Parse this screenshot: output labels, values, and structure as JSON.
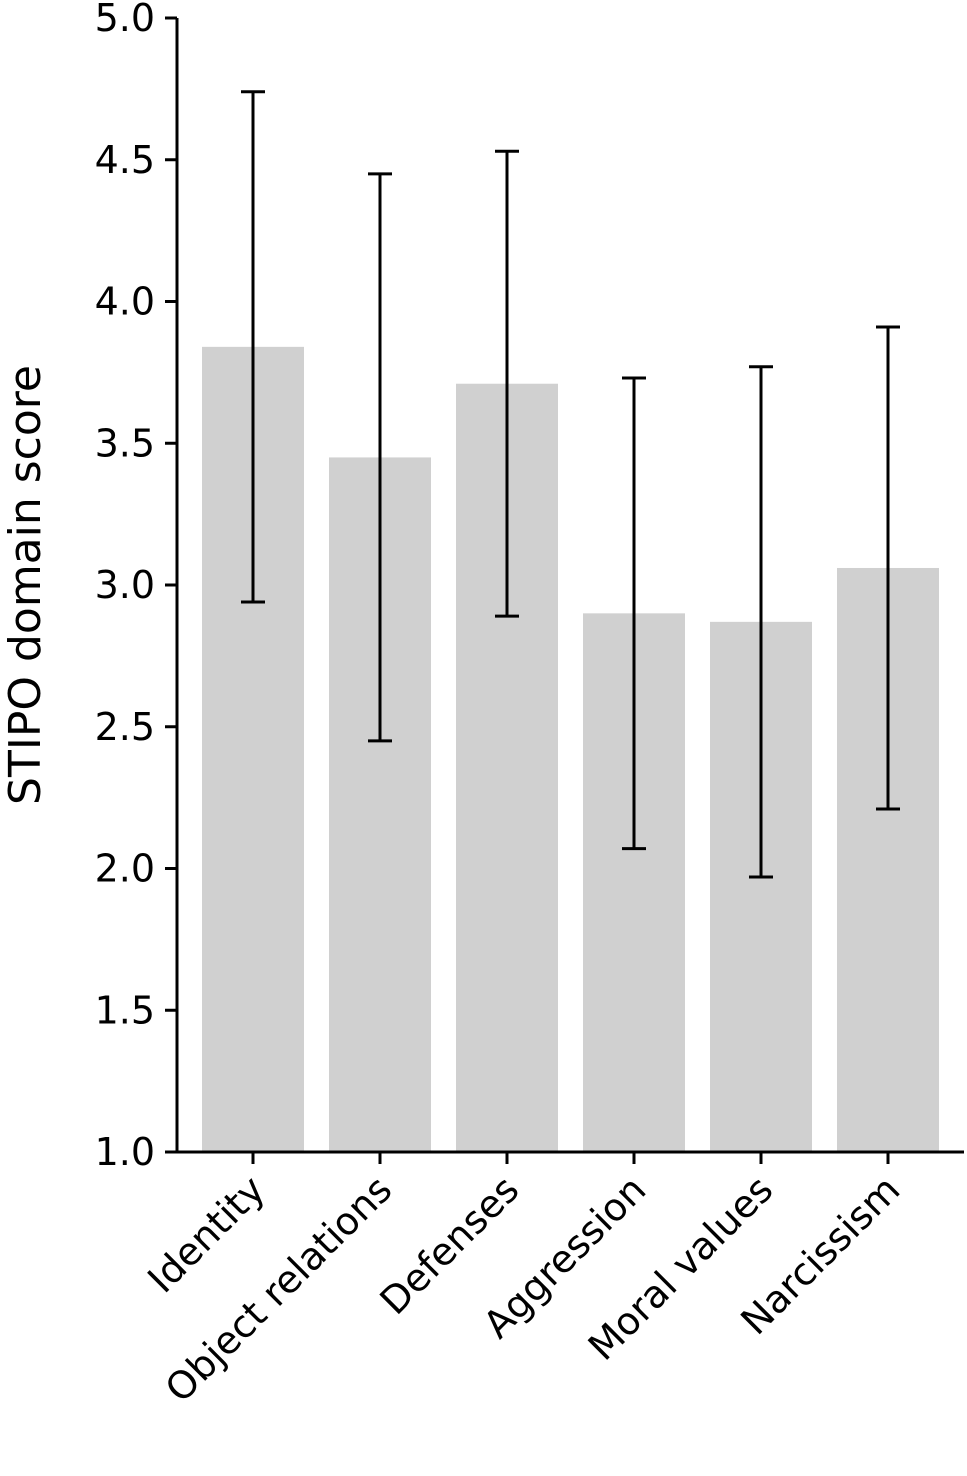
{
  "chart_data": {
    "type": "bar",
    "title": "",
    "xlabel": "",
    "ylabel": "STIPO domain score",
    "ylim": [
      1.0,
      5.0
    ],
    "yticks": [
      1.0,
      1.5,
      2.0,
      2.5,
      3.0,
      3.5,
      4.0,
      4.5,
      5.0
    ],
    "ytick_labels": [
      "1.0",
      "1.5",
      "2.0",
      "2.5",
      "3.0",
      "3.5",
      "4.0",
      "4.5",
      "5.0"
    ],
    "categories": [
      "Identity",
      "Object relations",
      "Defenses",
      "Aggression",
      "Moral values",
      "Narcissism"
    ],
    "values": [
      3.84,
      3.45,
      3.71,
      2.9,
      2.87,
      3.06
    ],
    "error_low": [
      2.94,
      2.45,
      2.89,
      2.07,
      1.97,
      2.21
    ],
    "error_high": [
      4.74,
      4.45,
      4.53,
      3.73,
      3.77,
      3.91
    ],
    "grid": false,
    "legend": "none",
    "colors": {
      "bar": "#d0d0d0",
      "errorbar": "#000000",
      "axis": "#000000"
    }
  }
}
